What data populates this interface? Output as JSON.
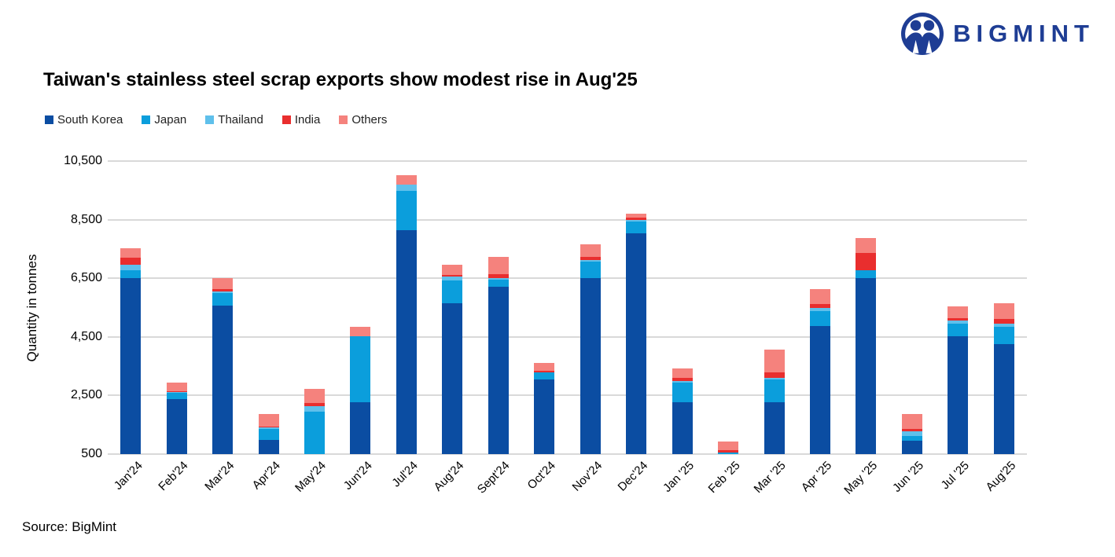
{
  "logo": {
    "text": "BIGMINT",
    "icon": "bigmint-people-icon",
    "color": "#1e3d94"
  },
  "title": "Taiwan's stainless steel scrap exports show modest rise in Aug'25",
  "source": "Source: BigMint",
  "chart_data": {
    "type": "bar",
    "stacked": true,
    "title": "Taiwan's stainless steel scrap exports show modest rise in Aug'25",
    "xlabel": "",
    "ylabel": "Quantity in tonnes",
    "ylim": [
      500,
      10500
    ],
    "yticks": [
      500,
      2500,
      4500,
      6500,
      8500,
      10500
    ],
    "grid": true,
    "legend_position": "top-left",
    "gridline_color": "#d9d9d9",
    "categories": [
      "Jan'24",
      "Feb'24",
      "Mar'24",
      "Apr'24",
      "May'24",
      "Jun'24",
      "Jul'24",
      "Aug'24",
      "Sept'24",
      "Oct'24",
      "Nov'24",
      "Dec'24",
      "Jan '25",
      "Feb '25",
      "Mar '25",
      "Apr '25",
      "May '25",
      "Jun '25",
      "Jul '25",
      "Aug'25"
    ],
    "series": [
      {
        "name": "South Korea",
        "color": "#0b4da2",
        "values": [
          6500,
          2370,
          5560,
          980,
          0,
          2260,
          8140,
          5650,
          6210,
          3050,
          6500,
          8045,
          2270,
          400,
          2260,
          4880,
          6500,
          950,
          4510,
          4250
        ]
      },
      {
        "name": "Japan",
        "color": "#0b9edc",
        "values": [
          270,
          210,
          430,
          385,
          1950,
          2250,
          1340,
          770,
          230,
          230,
          580,
          400,
          680,
          160,
          790,
          500,
          270,
          170,
          440,
          580
        ]
      },
      {
        "name": "Thailand",
        "color": "#5fc0eb",
        "values": [
          200,
          30,
          60,
          45,
          190,
          0,
          220,
          150,
          60,
          0,
          45,
          45,
          50,
          0,
          50,
          100,
          0,
          170,
          100,
          110
        ]
      },
      {
        "name": "India",
        "color": "#e92e2e",
        "values": [
          240,
          40,
          80,
          40,
          100,
          0,
          0,
          40,
          140,
          70,
          110,
          90,
          110,
          70,
          190,
          150,
          580,
          80,
          90,
          180
        ]
      },
      {
        "name": "Others",
        "color": "#f5827d",
        "values": [
          320,
          280,
          370,
          420,
          480,
          340,
          320,
          340,
          590,
          250,
          435,
          120,
          300,
          290,
          770,
          500,
          510,
          500,
          410,
          530
        ]
      }
    ],
    "totals": [
      7530,
      2930,
      6500,
      1870,
      2720,
      4850,
      10020,
      6950,
      7230,
      3600,
      7670,
      8700,
      3410,
      920,
      4060,
      6130,
      7860,
      1870,
      5550,
      5650
    ]
  }
}
